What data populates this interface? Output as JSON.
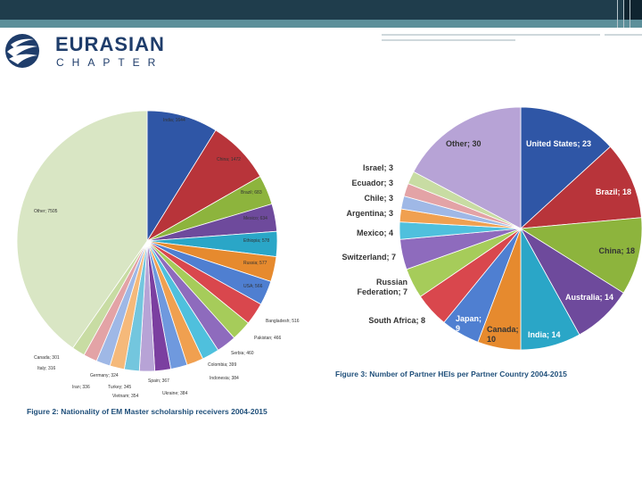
{
  "brand": {
    "line1": "EURASIAN",
    "line2": "CHAPTER"
  },
  "colors": {
    "header": "#1f3d4c",
    "stripe": "#5c8f9a",
    "brand": "#1f3d6b",
    "caption": "#1f4f7a"
  },
  "captions": {
    "fig2": "Figure 2: Nationality of EM Master scholarship receivers 2004-2015",
    "fig3": "Figure 3: Number of Partner HEIs per Partner Country 2004-2015"
  },
  "chart_data": [
    {
      "type": "pie",
      "slices": [
        {
          "label": "India; 1644",
          "value": 1644,
          "color": "#2f56a6"
        },
        {
          "label": "China; 1472",
          "value": 1472,
          "color": "#b8343a"
        },
        {
          "label": "Brazil; 683",
          "value": 683,
          "color": "#8db43d"
        },
        {
          "label": "Mexico; 634",
          "value": 634,
          "color": "#6e4a9c"
        },
        {
          "label": "Ethiopia; 578",
          "value": 578,
          "color": "#2aa6c7"
        },
        {
          "label": "Russia; 577",
          "value": 577,
          "color": "#e68a2e"
        },
        {
          "label": "USA; 566",
          "value": 566,
          "color": "#4f7fd1"
        },
        {
          "label": "Bangladesh; 516",
          "value": 516,
          "color": "#d9474d"
        },
        {
          "label": "Pakistan; 466",
          "value": 466,
          "color": "#a6cc5a"
        },
        {
          "label": "Serbia; 460",
          "value": 460,
          "color": "#8e6bbd"
        },
        {
          "label": "Colombia; 399",
          "value": 399,
          "color": "#4fc0dd"
        },
        {
          "label": "Indonesia; 384",
          "value": 384,
          "color": "#f0a050"
        },
        {
          "label": "Ukraine; 384",
          "value": 384,
          "color": "#6f99de"
        },
        {
          "label": "Spain; 367",
          "value": 367,
          "color": "#7b3fa0"
        },
        {
          "label": "Vietnam; 354",
          "value": 354,
          "color": "#b7a3d6"
        },
        {
          "label": "Turkey; 345",
          "value": 345,
          "color": "#73c6de"
        },
        {
          "label": "Iran; 336",
          "value": 336,
          "color": "#f5b97a"
        },
        {
          "label": "Germany; 324",
          "value": 324,
          "color": "#9fb8e6"
        },
        {
          "label": "Italy; 316",
          "value": 316,
          "color": "#e3a3a6"
        },
        {
          "label": "Canada; 301",
          "value": 301,
          "color": "#c8dca3"
        },
        {
          "label": "Other; 7505",
          "value": 7505,
          "color": "#d9e6c4"
        }
      ]
    },
    {
      "type": "pie",
      "slices": [
        {
          "label": "United States; 23",
          "value": 23,
          "color": "#2f56a6"
        },
        {
          "label": "Brazil; 18",
          "value": 18,
          "color": "#b8343a"
        },
        {
          "label": "China; 18",
          "value": 18,
          "color": "#8db43d"
        },
        {
          "label": "Australia; 14",
          "value": 14,
          "color": "#6e4a9c"
        },
        {
          "label": "India; 14",
          "value": 14,
          "color": "#2aa6c7"
        },
        {
          "label": "Canada; 10",
          "value": 10,
          "color": "#e68a2e"
        },
        {
          "label": "Japan; 9",
          "value": 9,
          "color": "#4f7fd1"
        },
        {
          "label": "South Africa; 8",
          "value": 8,
          "color": "#d9474d"
        },
        {
          "label": "Russian Federation; 7",
          "value": 7,
          "color": "#a6cc5a"
        },
        {
          "label": "Switzerland; 7",
          "value": 7,
          "color": "#8e6bbd"
        },
        {
          "label": "Mexico; 4",
          "value": 4,
          "color": "#4fc0dd"
        },
        {
          "label": "Argentina; 3",
          "value": 3,
          "color": "#f0a050"
        },
        {
          "label": "Chile; 3",
          "value": 3,
          "color": "#9fb8e6"
        },
        {
          "label": "Ecuador; 3",
          "value": 3,
          "color": "#e3a3a6"
        },
        {
          "label": "Israel; 3",
          "value": 3,
          "color": "#c8dca3"
        },
        {
          "label": "Other; 30",
          "value": 30,
          "color": "#b7a3d6"
        }
      ]
    }
  ]
}
